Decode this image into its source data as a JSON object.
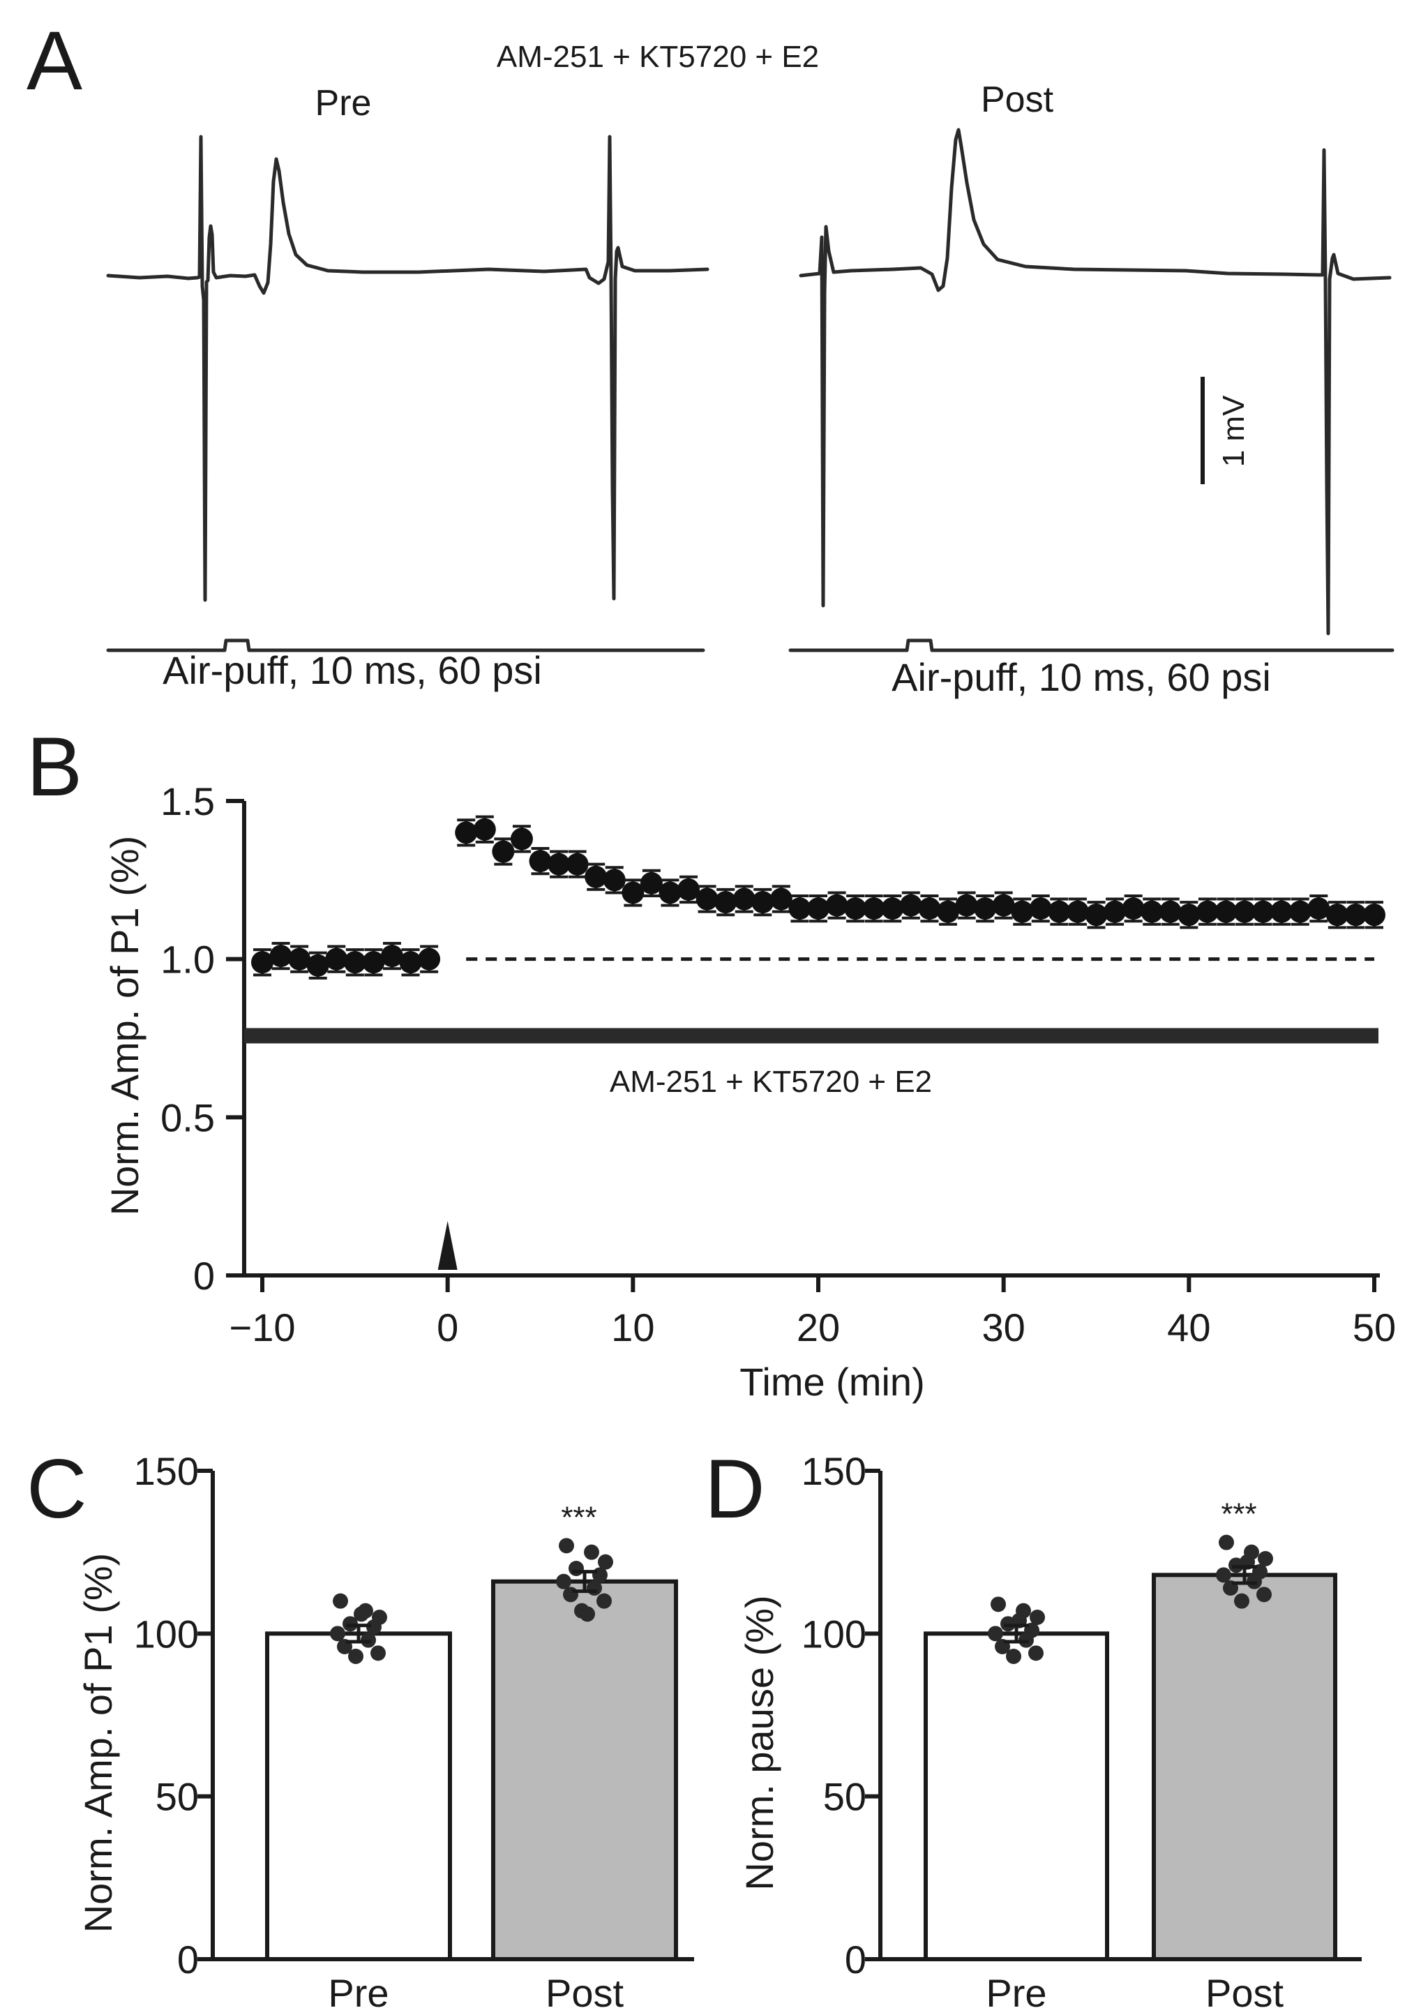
{
  "panels": {
    "A": {
      "letter": "A",
      "condition": "AM-251 + KT5720 + E2",
      "pre_label": "Pre",
      "post_label": "Post",
      "scale_label": "1 mV",
      "stim_label": "Air-puff, 10 ms, 60 psi"
    },
    "B": {
      "letter": "B"
    },
    "C": {
      "letter": "C"
    },
    "D": {
      "letter": "D"
    }
  },
  "chart_data": [
    {
      "panel": "B",
      "type": "scatter",
      "xlabel": "Time (min)",
      "ylabel": "Norm. Amp. of P1 (%)",
      "xlim": [
        -10,
        50
      ],
      "ylim": [
        0,
        1.5
      ],
      "xticks": [
        -10,
        0,
        10,
        20,
        30,
        40,
        50
      ],
      "xtick_labels": [
        "−10",
        "0",
        "10",
        "20",
        "30",
        "40",
        "50"
      ],
      "yticks": [
        0,
        0.5,
        1.0,
        1.5
      ],
      "ytick_labels": [
        "0",
        "0.5",
        "1.0",
        "1.5"
      ],
      "baseline": 1.0,
      "bar_label": "AM-251 + KT5720 + E2",
      "bar_level": 0.76,
      "arrow_at": 0,
      "series": [
        {
          "name": "P1",
          "x": [
            -10,
            -9,
            -8,
            -7,
            -6,
            -5,
            -4,
            -3,
            -2,
            -1,
            1,
            2,
            3,
            4,
            5,
            6,
            7,
            8,
            9,
            10,
            11,
            12,
            13,
            14,
            15,
            16,
            17,
            18,
            19,
            20,
            21,
            22,
            23,
            24,
            25,
            26,
            27,
            28,
            29,
            30,
            31,
            32,
            33,
            34,
            35,
            36,
            37,
            38,
            39,
            40,
            41,
            42,
            43,
            44,
            45,
            46,
            47,
            48,
            49,
            50
          ],
          "y": [
            0.99,
            1.01,
            1.0,
            0.98,
            1.0,
            0.99,
            0.99,
            1.01,
            0.99,
            1.0,
            1.4,
            1.41,
            1.34,
            1.38,
            1.31,
            1.3,
            1.3,
            1.26,
            1.25,
            1.21,
            1.24,
            1.21,
            1.22,
            1.19,
            1.18,
            1.19,
            1.18,
            1.19,
            1.16,
            1.16,
            1.17,
            1.16,
            1.16,
            1.16,
            1.17,
            1.16,
            1.15,
            1.17,
            1.16,
            1.17,
            1.15,
            1.16,
            1.15,
            1.15,
            1.14,
            1.15,
            1.16,
            1.15,
            1.15,
            1.14,
            1.15,
            1.15,
            1.15,
            1.15,
            1.15,
            1.15,
            1.16,
            1.14,
            1.14,
            1.14
          ],
          "err": 0.04
        }
      ]
    },
    {
      "panel": "C",
      "type": "bar",
      "categories": [
        "Pre",
        "Post"
      ],
      "values": [
        100,
        116
      ],
      "errors": [
        2.5,
        3
      ],
      "colors": [
        "#ffffff",
        "#b9bab9"
      ],
      "ylabel": "Norm. Amp. of P1 (%)",
      "ylim": [
        0,
        150
      ],
      "yticks": [
        0,
        50,
        100,
        150
      ],
      "ytick_labels": [
        "0",
        "50",
        "100",
        "150"
      ],
      "significance": "***",
      "points": [
        [
          110,
          107,
          105,
          103,
          102,
          100,
          98,
          96,
          94,
          93,
          106
        ],
        [
          127,
          125,
          122,
          120,
          118,
          116,
          114,
          112,
          110,
          107,
          106
        ]
      ]
    },
    {
      "panel": "D",
      "type": "bar",
      "categories": [
        "Pre",
        "Post"
      ],
      "values": [
        100,
        118
      ],
      "errors": [
        2.5,
        2.5
      ],
      "colors": [
        "#ffffff",
        "#b9bab9"
      ],
      "ylabel": "Norm. pause (%)",
      "ylim": [
        0,
        150
      ],
      "yticks": [
        0,
        50,
        100,
        150
      ],
      "ytick_labels": [
        "0",
        "50",
        "100",
        "150"
      ],
      "significance": "***",
      "points": [
        [
          109,
          107,
          105,
          103,
          101,
          100,
          98,
          96,
          94,
          93,
          104
        ],
        [
          128,
          125,
          123,
          121,
          119,
          118,
          116,
          114,
          112,
          110,
          122
        ]
      ]
    }
  ],
  "colors": {
    "ink": "#1a1a1a",
    "trace": "#2a2a2a",
    "bar_post": "#b9bab9"
  }
}
